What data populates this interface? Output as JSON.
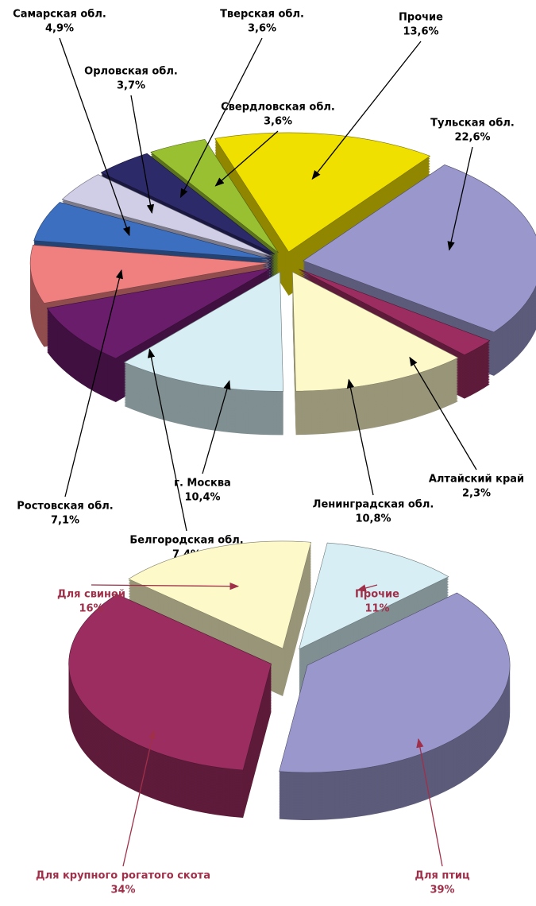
{
  "chart_data": [
    {
      "type": "pie3d",
      "categories": [
        "Прочие",
        "Тульская обл.",
        "Алтайский край",
        "Ленинградская обл.",
        "г. Москва",
        "Белгородская обл.",
        "Ростовская обл.",
        "Самарская обл.",
        "Орловская обл.",
        "Тверская обл.",
        "Свердловская обл."
      ],
      "values": [
        13.6,
        22.6,
        2.3,
        10.8,
        10.4,
        7.4,
        7.1,
        4.9,
        3.7,
        3.6,
        3.6
      ],
      "value_labels": [
        "13,6%",
        "22,6%",
        "2,3%",
        "10,8%",
        "10,4%",
        "7,4%",
        "7,1%",
        "4,9%",
        "3,7%",
        "3,6%",
        "3,6%"
      ],
      "colors": [
        "#f0e000",
        "#9a97cc",
        "#9c2d60",
        "#fdf9c8",
        "#d6eef4",
        "#6a1d6a",
        "#f08080",
        "#3d6fc0",
        "#d0cde6",
        "#2d2a6a",
        "#99c030"
      ],
      "label_color": "#000000"
    },
    {
      "type": "pie3d",
      "categories": [
        "Прочие",
        "Для  птиц",
        "Для крупного рогатого скота",
        "Для свиней"
      ],
      "values": [
        11,
        39,
        34,
        16
      ],
      "value_labels": [
        "11%",
        "39%",
        "34%",
        "16%"
      ],
      "colors": [
        "#d6eef4",
        "#9a97cc",
        "#9c2d60",
        "#fdf9c8"
      ],
      "label_color": "#a0304a"
    }
  ]
}
